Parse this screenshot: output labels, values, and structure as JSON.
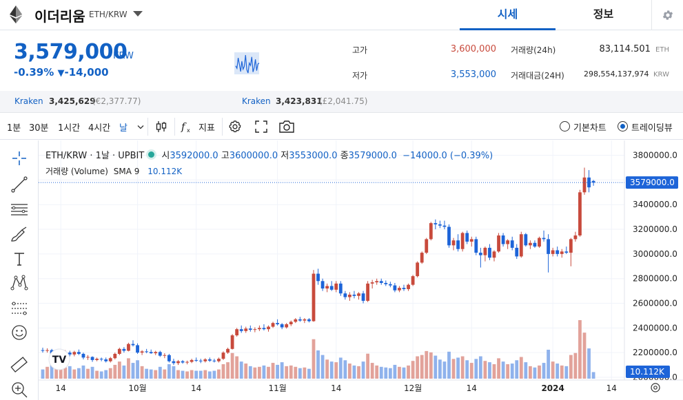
{
  "header": {
    "coin_name": "이더리움",
    "pair": "ETH/KRW",
    "tabs": [
      {
        "label": "시세"
      },
      {
        "label": "정보"
      }
    ]
  },
  "summary": {
    "price": "3,579,000",
    "unit": "KRW",
    "change_pct": "-0.39%",
    "change_arrow": "▼",
    "change_amt": "-14,000",
    "high_label": "고가",
    "high_value": "3,600,000",
    "low_label": "저가",
    "low_value": "3,553,000",
    "volume_label": "거래량(24h)",
    "volume_value": "83,114.501",
    "volume_unit": "ETH",
    "turnover_label": "거래대금(24H)",
    "turnover_value": "298,554,137,974",
    "turnover_unit": "KRW",
    "sparkline": [
      3573,
      3568,
      3590,
      3576,
      3561,
      3583,
      3566,
      3572,
      3596,
      3565,
      3558,
      3579,
      3574,
      3592,
      3560,
      3569,
      3587,
      3563,
      3577,
      3579
    ]
  },
  "exchanges": [
    {
      "name": "Kraken",
      "value": "3,425,629",
      "sub": "(€2,377.77)"
    },
    {
      "name": "Kraken",
      "value": "3,423,831",
      "sub": "(£2,041.75)"
    }
  ],
  "toolbar": {
    "intervals": [
      "1분",
      "30분",
      "1시간",
      "4시간",
      "날"
    ],
    "indicators_label": "지표",
    "view_basic": "기본차트",
    "view_trading": "트레이딩뷰"
  },
  "chart_data": {
    "type": "candlestick",
    "legend": {
      "symbol": "ETH/KRW · 1날 · UPBIT",
      "open_label": "시",
      "open": "3592000.0",
      "high_label": "고",
      "high": "3600000.0",
      "low_label": "저",
      "low": "3553000.0",
      "close_label": "종",
      "close": "3579000.0",
      "change": "−14000.0 (−0.39%)",
      "volume_title": "거래량 (Volume)",
      "sma_label": "SMA 9",
      "volume_value": "10.112K"
    },
    "y_axis": {
      "ticks": [
        "3800000.0",
        "3600000.0",
        "3400000.0",
        "3200000.0",
        "3000000.0",
        "2800000.0",
        "2600000.0",
        "2400000.0",
        "2200000.0",
        "2000000.0"
      ],
      "ylim": [
        2000000,
        3820000
      ],
      "last_price_label": "3579000.0",
      "volume_tag": "10.112K"
    },
    "x_axis": {
      "ticks": [
        {
          "label": "14",
          "index": 4
        },
        {
          "label": "10월",
          "index": 21
        },
        {
          "label": "14",
          "index": 34
        },
        {
          "label": "11월",
          "index": 52
        },
        {
          "label": "14",
          "index": 65
        },
        {
          "label": "12월",
          "index": 82
        },
        {
          "label": "14",
          "index": 95
        },
        {
          "label": "2024",
          "index": 113
        },
        {
          "label": "14",
          "index": 126
        }
      ]
    },
    "candles": [
      {
        "o": 2220,
        "h": 2240,
        "l": 2200,
        "c": 2215,
        "v": 1.4
      },
      {
        "o": 2215,
        "h": 2235,
        "l": 2200,
        "c": 2220,
        "v": 1.8
      },
      {
        "o": 2220,
        "h": 2230,
        "l": 2150,
        "c": 2165,
        "v": 2.2
      },
      {
        "o": 2165,
        "h": 2190,
        "l": 2140,
        "c": 2175,
        "v": 1.6
      },
      {
        "o": 2175,
        "h": 2200,
        "l": 2150,
        "c": 2185,
        "v": 1.5
      },
      {
        "o": 2185,
        "h": 2220,
        "l": 2170,
        "c": 2200,
        "v": 1.7
      },
      {
        "o": 2200,
        "h": 2215,
        "l": 2170,
        "c": 2185,
        "v": 1.9
      },
      {
        "o": 2185,
        "h": 2215,
        "l": 2170,
        "c": 2205,
        "v": 1.4
      },
      {
        "o": 2205,
        "h": 2225,
        "l": 2180,
        "c": 2190,
        "v": 1.6
      },
      {
        "o": 2190,
        "h": 2200,
        "l": 2145,
        "c": 2160,
        "v": 2.0
      },
      {
        "o": 2160,
        "h": 2180,
        "l": 2140,
        "c": 2165,
        "v": 1.5
      },
      {
        "o": 2165,
        "h": 2170,
        "l": 2125,
        "c": 2140,
        "v": 1.8
      },
      {
        "o": 2140,
        "h": 2160,
        "l": 2130,
        "c": 2150,
        "v": 1.2
      },
      {
        "o": 2150,
        "h": 2160,
        "l": 2130,
        "c": 2145,
        "v": 1.1
      },
      {
        "o": 2145,
        "h": 2160,
        "l": 2120,
        "c": 2130,
        "v": 1.3
      },
      {
        "o": 2130,
        "h": 2165,
        "l": 2120,
        "c": 2155,
        "v": 1.6
      },
      {
        "o": 2155,
        "h": 2200,
        "l": 2145,
        "c": 2190,
        "v": 2.1
      },
      {
        "o": 2190,
        "h": 2240,
        "l": 2180,
        "c": 2230,
        "v": 2.6
      },
      {
        "o": 2230,
        "h": 2245,
        "l": 2200,
        "c": 2215,
        "v": 2.0
      },
      {
        "o": 2215,
        "h": 2280,
        "l": 2210,
        "c": 2270,
        "v": 3.1
      },
      {
        "o": 2270,
        "h": 2300,
        "l": 2250,
        "c": 2260,
        "v": 2.4
      },
      {
        "o": 2260,
        "h": 2275,
        "l": 2190,
        "c": 2200,
        "v": 2.8
      },
      {
        "o": 2200,
        "h": 2220,
        "l": 2180,
        "c": 2210,
        "v": 1.9
      },
      {
        "o": 2210,
        "h": 2230,
        "l": 2195,
        "c": 2205,
        "v": 1.5
      },
      {
        "o": 2205,
        "h": 2225,
        "l": 2190,
        "c": 2195,
        "v": 1.4
      },
      {
        "o": 2195,
        "h": 2215,
        "l": 2180,
        "c": 2205,
        "v": 1.3
      },
      {
        "o": 2205,
        "h": 2215,
        "l": 2165,
        "c": 2175,
        "v": 1.8
      },
      {
        "o": 2175,
        "h": 2195,
        "l": 2155,
        "c": 2180,
        "v": 1.4
      },
      {
        "o": 2180,
        "h": 2190,
        "l": 2120,
        "c": 2130,
        "v": 2.2
      },
      {
        "o": 2130,
        "h": 2150,
        "l": 2100,
        "c": 2115,
        "v": 1.9
      },
      {
        "o": 2115,
        "h": 2140,
        "l": 2100,
        "c": 2130,
        "v": 1.3
      },
      {
        "o": 2130,
        "h": 2140,
        "l": 2110,
        "c": 2120,
        "v": 1.2
      },
      {
        "o": 2120,
        "h": 2135,
        "l": 2105,
        "c": 2125,
        "v": 1.1
      },
      {
        "o": 2125,
        "h": 2150,
        "l": 2115,
        "c": 2140,
        "v": 1.3
      },
      {
        "o": 2140,
        "h": 2160,
        "l": 2125,
        "c": 2135,
        "v": 1.2
      },
      {
        "o": 2135,
        "h": 2150,
        "l": 2115,
        "c": 2130,
        "v": 1.2
      },
      {
        "o": 2130,
        "h": 2155,
        "l": 2120,
        "c": 2145,
        "v": 1.3
      },
      {
        "o": 2145,
        "h": 2160,
        "l": 2125,
        "c": 2135,
        "v": 1.1
      },
      {
        "o": 2135,
        "h": 2150,
        "l": 2120,
        "c": 2130,
        "v": 1.2
      },
      {
        "o": 2130,
        "h": 2160,
        "l": 2120,
        "c": 2150,
        "v": 1.4
      },
      {
        "o": 2150,
        "h": 2210,
        "l": 2140,
        "c": 2200,
        "v": 2.2
      },
      {
        "o": 2200,
        "h": 2240,
        "l": 2190,
        "c": 2230,
        "v": 2.5
      },
      {
        "o": 2230,
        "h": 2350,
        "l": 2225,
        "c": 2340,
        "v": 3.9
      },
      {
        "o": 2340,
        "h": 2400,
        "l": 2330,
        "c": 2390,
        "v": 3.4
      },
      {
        "o": 2390,
        "h": 2420,
        "l": 2360,
        "c": 2375,
        "v": 2.6
      },
      {
        "o": 2375,
        "h": 2410,
        "l": 2360,
        "c": 2395,
        "v": 2.3
      },
      {
        "o": 2395,
        "h": 2420,
        "l": 2370,
        "c": 2385,
        "v": 1.9
      },
      {
        "o": 2385,
        "h": 2405,
        "l": 2365,
        "c": 2390,
        "v": 1.7
      },
      {
        "o": 2390,
        "h": 2420,
        "l": 2375,
        "c": 2400,
        "v": 1.8
      },
      {
        "o": 2400,
        "h": 2430,
        "l": 2380,
        "c": 2390,
        "v": 2.0
      },
      {
        "o": 2390,
        "h": 2420,
        "l": 2370,
        "c": 2410,
        "v": 1.8
      },
      {
        "o": 2410,
        "h": 2450,
        "l": 2400,
        "c": 2440,
        "v": 2.4
      },
      {
        "o": 2440,
        "h": 2470,
        "l": 2420,
        "c": 2430,
        "v": 2.1
      },
      {
        "o": 2430,
        "h": 2440,
        "l": 2390,
        "c": 2405,
        "v": 2.5
      },
      {
        "o": 2405,
        "h": 2440,
        "l": 2395,
        "c": 2430,
        "v": 1.9
      },
      {
        "o": 2430,
        "h": 2460,
        "l": 2415,
        "c": 2450,
        "v": 2.0
      },
      {
        "o": 2450,
        "h": 2480,
        "l": 2440,
        "c": 2470,
        "v": 1.8
      },
      {
        "o": 2470,
        "h": 2490,
        "l": 2450,
        "c": 2460,
        "v": 1.6
      },
      {
        "o": 2460,
        "h": 2480,
        "l": 2440,
        "c": 2470,
        "v": 1.7
      },
      {
        "o": 2470,
        "h": 2480,
        "l": 2445,
        "c": 2455,
        "v": 1.5
      },
      {
        "o": 2455,
        "h": 2870,
        "l": 2450,
        "c": 2840,
        "v": 6.0
      },
      {
        "o": 2840,
        "h": 2880,
        "l": 2750,
        "c": 2780,
        "v": 4.3
      },
      {
        "o": 2780,
        "h": 2800,
        "l": 2700,
        "c": 2720,
        "v": 3.6
      },
      {
        "o": 2720,
        "h": 2760,
        "l": 2690,
        "c": 2740,
        "v": 2.9
      },
      {
        "o": 2740,
        "h": 2780,
        "l": 2700,
        "c": 2710,
        "v": 2.6
      },
      {
        "o": 2710,
        "h": 2780,
        "l": 2690,
        "c": 2760,
        "v": 2.5
      },
      {
        "o": 2760,
        "h": 2780,
        "l": 2660,
        "c": 2680,
        "v": 3.2
      },
      {
        "o": 2680,
        "h": 2700,
        "l": 2630,
        "c": 2650,
        "v": 2.8
      },
      {
        "o": 2650,
        "h": 2690,
        "l": 2620,
        "c": 2670,
        "v": 2.3
      },
      {
        "o": 2670,
        "h": 2700,
        "l": 2640,
        "c": 2660,
        "v": 2.0
      },
      {
        "o": 2660,
        "h": 2690,
        "l": 2630,
        "c": 2680,
        "v": 1.9
      },
      {
        "o": 2680,
        "h": 2700,
        "l": 2600,
        "c": 2620,
        "v": 2.6
      },
      {
        "o": 2620,
        "h": 2780,
        "l": 2610,
        "c": 2760,
        "v": 3.8
      },
      {
        "o": 2760,
        "h": 2790,
        "l": 2720,
        "c": 2770,
        "v": 2.4
      },
      {
        "o": 2770,
        "h": 2800,
        "l": 2750,
        "c": 2780,
        "v": 2.0
      },
      {
        "o": 2780,
        "h": 2800,
        "l": 2750,
        "c": 2765,
        "v": 1.8
      },
      {
        "o": 2765,
        "h": 2785,
        "l": 2740,
        "c": 2755,
        "v": 1.7
      },
      {
        "o": 2755,
        "h": 2775,
        "l": 2730,
        "c": 2745,
        "v": 1.6
      },
      {
        "o": 2745,
        "h": 2765,
        "l": 2690,
        "c": 2705,
        "v": 2.1
      },
      {
        "o": 2705,
        "h": 2740,
        "l": 2690,
        "c": 2725,
        "v": 1.8
      },
      {
        "o": 2725,
        "h": 2750,
        "l": 2700,
        "c": 2715,
        "v": 1.7
      },
      {
        "o": 2715,
        "h": 2760,
        "l": 2700,
        "c": 2750,
        "v": 2.0
      },
      {
        "o": 2750,
        "h": 2830,
        "l": 2740,
        "c": 2820,
        "v": 2.7
      },
      {
        "o": 2820,
        "h": 2940,
        "l": 2810,
        "c": 2930,
        "v": 3.4
      },
      {
        "o": 2930,
        "h": 3020,
        "l": 2920,
        "c": 3010,
        "v": 3.6
      },
      {
        "o": 3010,
        "h": 3130,
        "l": 3000,
        "c": 3120,
        "v": 4.2
      },
      {
        "o": 3120,
        "h": 3260,
        "l": 3110,
        "c": 3250,
        "v": 4.0
      },
      {
        "o": 3250,
        "h": 3280,
        "l": 3200,
        "c": 3240,
        "v": 3.5
      },
      {
        "o": 3240,
        "h": 3270,
        "l": 3210,
        "c": 3230,
        "v": 2.9
      },
      {
        "o": 3230,
        "h": 3270,
        "l": 3200,
        "c": 3220,
        "v": 2.6
      },
      {
        "o": 3220,
        "h": 3240,
        "l": 3050,
        "c": 3070,
        "v": 4.1
      },
      {
        "o": 3070,
        "h": 3130,
        "l": 3030,
        "c": 3110,
        "v": 3.0
      },
      {
        "o": 3110,
        "h": 3160,
        "l": 3020,
        "c": 3040,
        "v": 3.2
      },
      {
        "o": 3040,
        "h": 3180,
        "l": 3020,
        "c": 3170,
        "v": 3.4
      },
      {
        "o": 3170,
        "h": 3190,
        "l": 3080,
        "c": 3100,
        "v": 2.8
      },
      {
        "o": 3100,
        "h": 3140,
        "l": 3060,
        "c": 3120,
        "v": 2.4
      },
      {
        "o": 3120,
        "h": 3140,
        "l": 2990,
        "c": 3010,
        "v": 3.0
      },
      {
        "o": 3010,
        "h": 3050,
        "l": 2890,
        "c": 2990,
        "v": 3.4
      },
      {
        "o": 2990,
        "h": 3060,
        "l": 2940,
        "c": 3050,
        "v": 2.7
      },
      {
        "o": 3050,
        "h": 3080,
        "l": 2950,
        "c": 2970,
        "v": 2.5
      },
      {
        "o": 2970,
        "h": 3030,
        "l": 2940,
        "c": 3020,
        "v": 2.2
      },
      {
        "o": 3020,
        "h": 3170,
        "l": 3010,
        "c": 3150,
        "v": 3.1
      },
      {
        "o": 3150,
        "h": 3170,
        "l": 3060,
        "c": 3080,
        "v": 2.6
      },
      {
        "o": 3080,
        "h": 3120,
        "l": 3040,
        "c": 3110,
        "v": 2.2
      },
      {
        "o": 3110,
        "h": 3140,
        "l": 3030,
        "c": 3050,
        "v": 2.3
      },
      {
        "o": 3050,
        "h": 3080,
        "l": 2960,
        "c": 2980,
        "v": 2.8
      },
      {
        "o": 2980,
        "h": 3180,
        "l": 2970,
        "c": 3160,
        "v": 3.3
      },
      {
        "o": 3160,
        "h": 3170,
        "l": 3060,
        "c": 3070,
        "v": 2.5
      },
      {
        "o": 3070,
        "h": 3110,
        "l": 3040,
        "c": 3090,
        "v": 1.9
      },
      {
        "o": 3090,
        "h": 3110,
        "l": 3050,
        "c": 3060,
        "v": 1.7
      },
      {
        "o": 3060,
        "h": 3140,
        "l": 3050,
        "c": 3130,
        "v": 2.0
      },
      {
        "o": 3130,
        "h": 3190,
        "l": 3100,
        "c": 3120,
        "v": 2.4
      },
      {
        "o": 3120,
        "h": 3160,
        "l": 2850,
        "c": 3000,
        "v": 4.4
      },
      {
        "o": 3000,
        "h": 3050,
        "l": 2980,
        "c": 3030,
        "v": 2.6
      },
      {
        "o": 3030,
        "h": 3060,
        "l": 2980,
        "c": 3000,
        "v": 2.3
      },
      {
        "o": 3000,
        "h": 3040,
        "l": 2970,
        "c": 3020,
        "v": 2.0
      },
      {
        "o": 3020,
        "h": 3060,
        "l": 3000,
        "c": 3010,
        "v": 1.9
      },
      {
        "o": 3010,
        "h": 3130,
        "l": 2900,
        "c": 3120,
        "v": 3.6
      },
      {
        "o": 3120,
        "h": 3180,
        "l": 3100,
        "c": 3150,
        "v": 3.9
      },
      {
        "o": 3150,
        "h": 3520,
        "l": 3140,
        "c": 3500,
        "v": 8.9
      },
      {
        "o": 3500,
        "h": 3700,
        "l": 3480,
        "c": 3620,
        "v": 7.0
      },
      {
        "o": 3620,
        "h": 3680,
        "l": 3500,
        "c": 3540,
        "v": 4.6
      },
      {
        "o": 3592,
        "h": 3600,
        "l": 3553,
        "c": 3579,
        "v": 1.0
      }
    ],
    "colors": {
      "up": "#c84a3c",
      "down": "#1d64d8",
      "up_volume": "#e2a29a",
      "down_volume": "#8fb2ec",
      "accent": "#1261c4"
    }
  }
}
